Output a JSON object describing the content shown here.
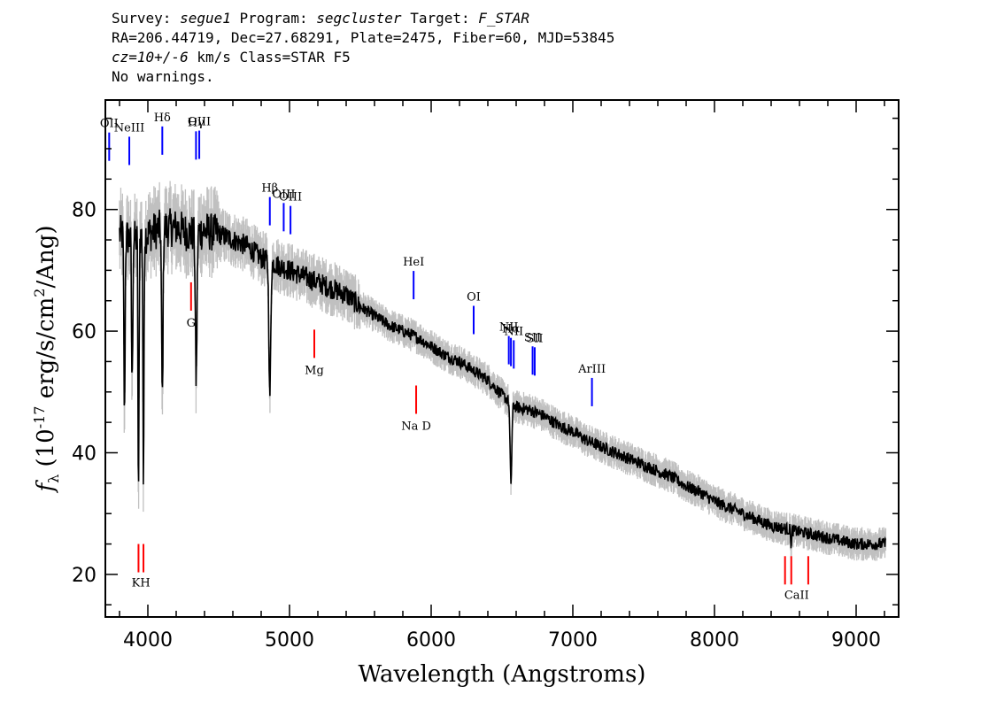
{
  "header": {
    "survey_label": "Survey:",
    "survey_value": "segue1",
    "program_label": "Program:",
    "program_value": "segcluster",
    "target_label": "Target:",
    "target_value": "F_STAR",
    "line2": "RA=206.44719, Dec=27.68291, Plate=2475, Fiber=60, MJD=53845",
    "cz_value": "cz=10+/-6",
    "cz_rest": " km/s Class=STAR F5",
    "line4": "No warnings."
  },
  "chart_data": {
    "type": "line",
    "xlabel": "Wavelength (Angstroms)",
    "ylabel": "fλ (10^-17 erg/s/cm^2/Ang)",
    "ylabel_prefix": "f",
    "ylabel_sub": "λ",
    "ylabel_main": " (10",
    "ylabel_exp1": "-17",
    "ylabel_mid": " erg/s/cm",
    "ylabel_exp2": "2",
    "ylabel_end": "/Ang)",
    "xlim": [
      3700,
      9300
    ],
    "ylim": [
      13,
      98
    ],
    "xticks": [
      4000,
      5000,
      6000,
      7000,
      8000,
      9000
    ],
    "yticks": [
      20,
      40,
      60,
      80
    ],
    "colors": {
      "flux": "#000000",
      "error": "#c0c0c0",
      "emission": "#0000ff",
      "absorption": "#ff0000"
    },
    "continuum": [
      [
        3800,
        76
      ],
      [
        3900,
        75
      ],
      [
        4000,
        76
      ],
      [
        4100,
        77
      ],
      [
        4200,
        77
      ],
      [
        4300,
        76
      ],
      [
        4400,
        76.5
      ],
      [
        4500,
        76
      ],
      [
        4600,
        75
      ],
      [
        4700,
        74
      ],
      [
        4800,
        72
      ],
      [
        4900,
        71
      ],
      [
        5000,
        70
      ],
      [
        5100,
        69
      ],
      [
        5200,
        68
      ],
      [
        5300,
        67
      ],
      [
        5400,
        66
      ],
      [
        5500,
        64
      ],
      [
        5600,
        62.5
      ],
      [
        5700,
        61
      ],
      [
        5800,
        60
      ],
      [
        5900,
        59
      ],
      [
        6000,
        57.5
      ],
      [
        6100,
        56
      ],
      [
        6200,
        55
      ],
      [
        6300,
        53.5
      ],
      [
        6400,
        52
      ],
      [
        6500,
        49.5
      ],
      [
        6600,
        47.5
      ],
      [
        6700,
        47
      ],
      [
        6800,
        46
      ],
      [
        6900,
        44.5
      ],
      [
        7000,
        43.5
      ],
      [
        7100,
        42
      ],
      [
        7200,
        41
      ],
      [
        7300,
        40
      ],
      [
        7400,
        39
      ],
      [
        7500,
        38
      ],
      [
        7600,
        37
      ],
      [
        7700,
        36
      ],
      [
        7800,
        34.5
      ],
      [
        7900,
        33.5
      ],
      [
        8000,
        32
      ],
      [
        8100,
        31
      ],
      [
        8200,
        30
      ],
      [
        8300,
        29
      ],
      [
        8400,
        28
      ],
      [
        8500,
        27.5
      ],
      [
        8600,
        27
      ],
      [
        8700,
        26.5
      ],
      [
        8800,
        26
      ],
      [
        8900,
        25.5
      ],
      [
        9000,
        25
      ],
      [
        9100,
        25
      ],
      [
        9200,
        25
      ]
    ],
    "absorption_features": [
      {
        "center": 3835,
        "depth": 30,
        "width": 6
      },
      {
        "center": 3889,
        "depth": 24,
        "width": 6
      },
      {
        "center": 3934,
        "depth": 44,
        "width": 5
      },
      {
        "center": 3969,
        "depth": 42,
        "width": 5
      },
      {
        "center": 4102,
        "depth": 28,
        "width": 7
      },
      {
        "center": 4341,
        "depth": 24,
        "width": 8
      },
      {
        "center": 4861,
        "depth": 22,
        "width": 9
      },
      {
        "center": 6563,
        "depth": 13,
        "width": 9
      },
      {
        "center": 8542,
        "depth": 3,
        "width": 4
      }
    ],
    "emission_lines": [
      {
        "label": "OII",
        "wavelength": 3727
      },
      {
        "label": "NeIII",
        "wavelength": 3869
      },
      {
        "label": "Hδ",
        "wavelength": 4102
      },
      {
        "label": "Hγ",
        "wavelength": 4340
      },
      {
        "label": "OIII",
        "wavelength": 4363
      },
      {
        "label": "Hβ",
        "wavelength": 4861
      },
      {
        "label": "OIII",
        "wavelength": 4959
      },
      {
        "label": "OIII",
        "wavelength": 5007
      },
      {
        "label": "HeI",
        "wavelength": 5876
      },
      {
        "label": "OI",
        "wavelength": 6300
      },
      {
        "label": "NII",
        "wavelength": 6548
      },
      {
        "label": "Hα",
        "wavelength": 6563
      },
      {
        "label": "NII",
        "wavelength": 6583
      },
      {
        "label": "SII",
        "wavelength": 6716
      },
      {
        "label": "SII",
        "wavelength": 6731
      },
      {
        "label": "ArIII",
        "wavelength": 7135
      }
    ],
    "absorption_lines": [
      {
        "label": "K",
        "wavelength": 3934
      },
      {
        "label": "H",
        "wavelength": 3969
      },
      {
        "label": "G",
        "wavelength": 4305
      },
      {
        "label": "Mg",
        "wavelength": 5175
      },
      {
        "label": "Na",
        "wavelength": 5894
      },
      {
        "label": "CaII",
        "wavelength": 8498
      },
      {
        "label": "CaII",
        "wavelength": 8542
      },
      {
        "label": "CaII",
        "wavelength": 8662
      }
    ],
    "absorption_labels": [
      {
        "text": "KH",
        "wavelength": 3951
      },
      {
        "text": "G",
        "wavelength": 4305
      },
      {
        "text": "Mg",
        "wavelength": 5175
      },
      {
        "text": "Na  D",
        "wavelength": 5894
      },
      {
        "text": "CaII",
        "wavelength": 8580
      }
    ]
  }
}
